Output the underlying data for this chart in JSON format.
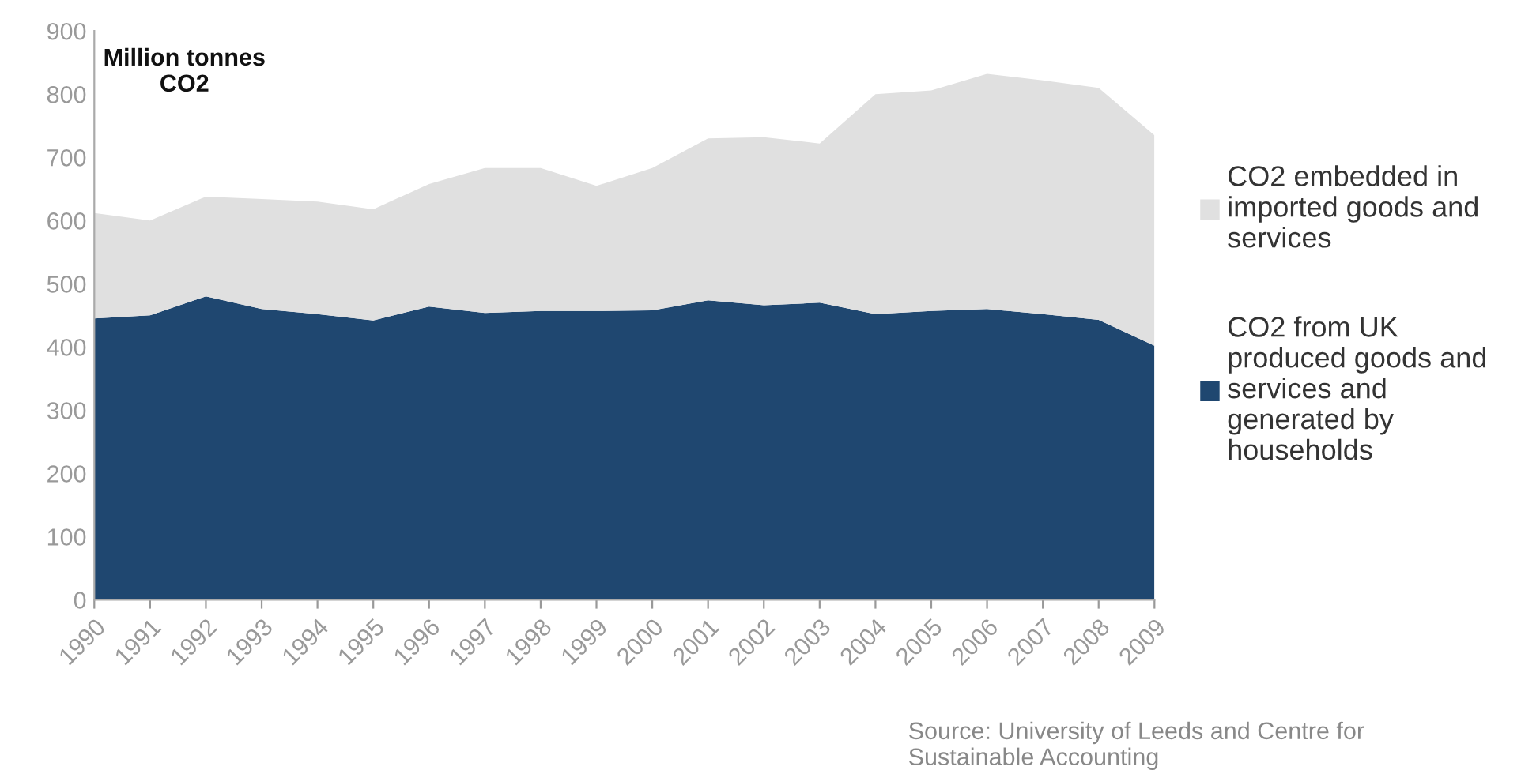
{
  "chart_data": {
    "type": "area",
    "stacked": true,
    "ylabel": "Million tonnes\nCO2",
    "categories": [
      "1990",
      "1991",
      "1992",
      "1993",
      "1994",
      "1995",
      "1996",
      "1997",
      "1998",
      "1999",
      "2000",
      "2001",
      "2002",
      "2003",
      "2004",
      "2005",
      "2006",
      "2007",
      "2008",
      "2009"
    ],
    "series": [
      {
        "name": "CO2 from UK\nproduced goods and\nservices and\ngenerated by\nhouseholds",
        "color": "#1f4770",
        "values": [
          445,
          450,
          480,
          460,
          452,
          442,
          464,
          454,
          457,
          457,
          458,
          474,
          466,
          470,
          452,
          457,
          460,
          452,
          443,
          402
        ]
      },
      {
        "name": "CO2 embedded in\nimported goods and\nservices",
        "color": "#e0e0e0",
        "values": [
          167,
          150,
          158,
          174,
          178,
          176,
          194,
          229,
          226,
          198,
          225,
          256,
          266,
          252,
          348,
          349,
          372,
          370,
          367,
          333
        ]
      }
    ],
    "ylim": [
      0,
      900
    ],
    "yticks": [
      0,
      100,
      200,
      300,
      400,
      500,
      600,
      700,
      800,
      900
    ],
    "grid": false,
    "legend": "right",
    "annotations": [
      "Source: University of Leeds and Centre for\nSustainable Accounting"
    ]
  }
}
